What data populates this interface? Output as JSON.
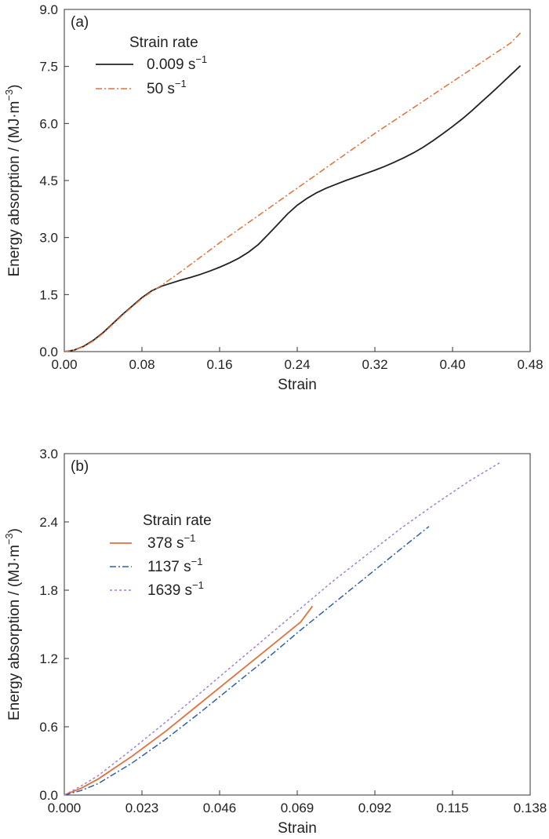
{
  "chart_data": [
    {
      "type": "line",
      "panel_label": "(a)",
      "xlabel": "Strain",
      "ylabel": "Energy absorption / (MJ·m",
      "ylabel_sup": "−3",
      "ylabel_close": ")",
      "xlim": [
        0,
        0.48
      ],
      "ylim": [
        0,
        9.0
      ],
      "xticks": [
        0,
        0.08,
        0.16,
        0.24,
        0.32,
        0.4,
        0.48
      ],
      "xtick_labels": [
        "0.00",
        "0.08",
        "0.16",
        "0.24",
        "0.32",
        "0.40",
        "0.48"
      ],
      "yticks": [
        0,
        1.5,
        3.0,
        4.5,
        6.0,
        7.5,
        9.0
      ],
      "ytick_labels": [
        "0.0",
        "1.5",
        "3.0",
        "4.5",
        "6.0",
        "7.5",
        "9.0"
      ],
      "legend_title": "Strain rate",
      "legend_placement": "top-left",
      "grid": false,
      "series": [
        {
          "name": "0.009 s",
          "name_sup": "−1",
          "color": "#222222",
          "dash": "solid",
          "x": [
            0,
            0.01,
            0.02,
            0.03,
            0.04,
            0.05,
            0.06,
            0.07,
            0.08,
            0.09,
            0.1,
            0.11,
            0.12,
            0.13,
            0.14,
            0.15,
            0.16,
            0.17,
            0.18,
            0.19,
            0.2,
            0.21,
            0.22,
            0.23,
            0.24,
            0.25,
            0.26,
            0.27,
            0.28,
            0.29,
            0.3,
            0.31,
            0.32,
            0.33,
            0.34,
            0.35,
            0.36,
            0.37,
            0.38,
            0.39,
            0.4,
            0.41,
            0.42,
            0.43,
            0.44,
            0.45,
            0.46,
            0.47
          ],
          "y": [
            0,
            0.04,
            0.14,
            0.3,
            0.5,
            0.74,
            0.98,
            1.2,
            1.42,
            1.6,
            1.72,
            1.8,
            1.88,
            1.95,
            2.03,
            2.12,
            2.22,
            2.33,
            2.46,
            2.62,
            2.82,
            3.08,
            3.35,
            3.62,
            3.85,
            4.03,
            4.18,
            4.3,
            4.4,
            4.5,
            4.59,
            4.68,
            4.77,
            4.87,
            4.98,
            5.1,
            5.23,
            5.38,
            5.55,
            5.73,
            5.92,
            6.12,
            6.34,
            6.57,
            6.8,
            7.04,
            7.28,
            7.52
          ]
        },
        {
          "name": "50 s",
          "name_sup": "−1",
          "color": "#E2703A",
          "dash": "dashdot",
          "x": [
            0,
            0.01,
            0.02,
            0.03,
            0.04,
            0.05,
            0.06,
            0.07,
            0.08,
            0.09,
            0.1,
            0.12,
            0.14,
            0.16,
            0.18,
            0.2,
            0.22,
            0.24,
            0.26,
            0.28,
            0.3,
            0.32,
            0.34,
            0.36,
            0.38,
            0.4,
            0.42,
            0.44,
            0.46,
            0.47
          ],
          "y": [
            0,
            0.04,
            0.13,
            0.28,
            0.48,
            0.72,
            0.96,
            1.18,
            1.4,
            1.58,
            1.74,
            2.1,
            2.48,
            2.86,
            3.22,
            3.58,
            3.94,
            4.3,
            4.66,
            5.02,
            5.38,
            5.74,
            6.08,
            6.42,
            6.76,
            7.1,
            7.44,
            7.78,
            8.12,
            8.38
          ]
        }
      ]
    },
    {
      "type": "line",
      "panel_label": "(b)",
      "xlabel": "Strain",
      "ylabel": "Energy absorption / (MJ·m",
      "ylabel_sup": "−3",
      "ylabel_close": ")",
      "xlim": [
        0,
        0.138
      ],
      "ylim": [
        0,
        3.0
      ],
      "xticks": [
        0,
        0.023,
        0.046,
        0.069,
        0.092,
        0.115,
        0.138
      ],
      "xtick_labels": [
        "0.000",
        "0.023",
        "0.046",
        "0.069",
        "0.092",
        "0.115",
        "0.138"
      ],
      "yticks": [
        0,
        0.6,
        1.2,
        1.8,
        2.4,
        3.0
      ],
      "ytick_labels": [
        "0.0",
        "0.6",
        "1.2",
        "1.8",
        "2.4",
        "3.0"
      ],
      "legend_title": "Strain rate",
      "legend_placement": "top-left",
      "grid": false,
      "series": [
        {
          "name": "378 s",
          "name_sup": "−1",
          "color": "#E2703A",
          "dash": "solid",
          "x": [
            0,
            0.005,
            0.01,
            0.02,
            0.03,
            0.04,
            0.05,
            0.06,
            0.07,
            0.0735
          ],
          "y": [
            0,
            0.06,
            0.14,
            0.34,
            0.56,
            0.8,
            1.04,
            1.28,
            1.52,
            1.66
          ]
        },
        {
          "name": "1137 s",
          "name_sup": "−1",
          "color": "#2E5FA8",
          "dash": "dashdot",
          "x": [
            0,
            0.005,
            0.01,
            0.02,
            0.03,
            0.04,
            0.05,
            0.06,
            0.07,
            0.08,
            0.09,
            0.1,
            0.108
          ],
          "y": [
            0,
            0.04,
            0.1,
            0.28,
            0.49,
            0.72,
            0.96,
            1.2,
            1.45,
            1.69,
            1.93,
            2.17,
            2.36
          ]
        },
        {
          "name": "1639 s",
          "name_sup": "−1",
          "color": "#A67FD0",
          "dash": "dotted",
          "x": [
            0,
            0.005,
            0.01,
            0.02,
            0.03,
            0.04,
            0.05,
            0.06,
            0.07,
            0.08,
            0.09,
            0.1,
            0.11,
            0.12,
            0.129
          ],
          "y": [
            0,
            0.08,
            0.17,
            0.4,
            0.64,
            0.89,
            1.14,
            1.39,
            1.64,
            1.89,
            2.12,
            2.35,
            2.56,
            2.76,
            2.92
          ]
        }
      ]
    }
  ]
}
